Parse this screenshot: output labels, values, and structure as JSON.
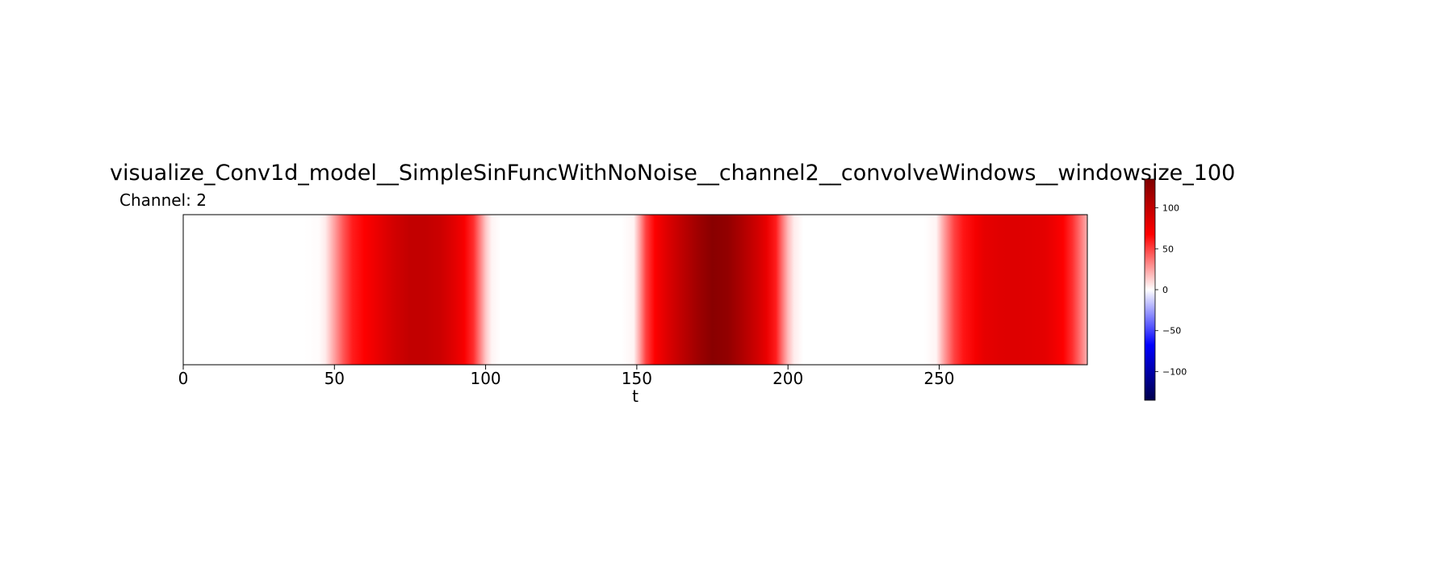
{
  "chart_data": {
    "type": "heatmap",
    "title": "visualize_Conv1d_model__SimpleSinFuncWithNoNoise__channel2__convolveWindows__windowsize_100",
    "subtitle": "Channel: 2",
    "xlabel": "t",
    "ylabel": "",
    "xlim": [
      0,
      299
    ],
    "xticks": [
      0,
      50,
      100,
      150,
      200,
      250
    ],
    "colormap": "seismic",
    "colorbar": {
      "range": [
        -135,
        135
      ],
      "ticks": [
        -100,
        -50,
        0,
        50,
        100
      ]
    },
    "y_ticks_shown": false,
    "grid": false,
    "values": [
      [
        0,
        0
      ],
      [
        5,
        0
      ],
      [
        10,
        0
      ],
      [
        15,
        0
      ],
      [
        20,
        0
      ],
      [
        25,
        0
      ],
      [
        30,
        0
      ],
      [
        35,
        0
      ],
      [
        40,
        0
      ],
      [
        45,
        1
      ],
      [
        47,
        5
      ],
      [
        50,
        25
      ],
      [
        53,
        45
      ],
      [
        56,
        60
      ],
      [
        60,
        68
      ],
      [
        65,
        80
      ],
      [
        70,
        92
      ],
      [
        75,
        100
      ],
      [
        80,
        100
      ],
      [
        85,
        95
      ],
      [
        90,
        82
      ],
      [
        93,
        70
      ],
      [
        96,
        55
      ],
      [
        98,
        35
      ],
      [
        100,
        15
      ],
      [
        102,
        3
      ],
      [
        105,
        0
      ],
      [
        110,
        0
      ],
      [
        115,
        0
      ],
      [
        120,
        0
      ],
      [
        125,
        0
      ],
      [
        130,
        0
      ],
      [
        135,
        0
      ],
      [
        140,
        0
      ],
      [
        145,
        0
      ],
      [
        149,
        3
      ],
      [
        151,
        25
      ],
      [
        153,
        50
      ],
      [
        156,
        68
      ],
      [
        160,
        85
      ],
      [
        165,
        102
      ],
      [
        170,
        118
      ],
      [
        175,
        130
      ],
      [
        180,
        125
      ],
      [
        185,
        110
      ],
      [
        190,
        92
      ],
      [
        193,
        78
      ],
      [
        196,
        60
      ],
      [
        198,
        38
      ],
      [
        200,
        18
      ],
      [
        202,
        5
      ],
      [
        205,
        0
      ],
      [
        210,
        0
      ],
      [
        215,
        0
      ],
      [
        220,
        0
      ],
      [
        225,
        0
      ],
      [
        230,
        0
      ],
      [
        235,
        0
      ],
      [
        240,
        0
      ],
      [
        245,
        0
      ],
      [
        249,
        3
      ],
      [
        252,
        28
      ],
      [
        255,
        50
      ],
      [
        258,
        62
      ],
      [
        262,
        72
      ],
      [
        265,
        80
      ],
      [
        270,
        84
      ],
      [
        275,
        85
      ],
      [
        280,
        84
      ],
      [
        285,
        82
      ],
      [
        288,
        76
      ],
      [
        291,
        68
      ],
      [
        294,
        55
      ],
      [
        297,
        35
      ],
      [
        299,
        20
      ]
    ]
  }
}
